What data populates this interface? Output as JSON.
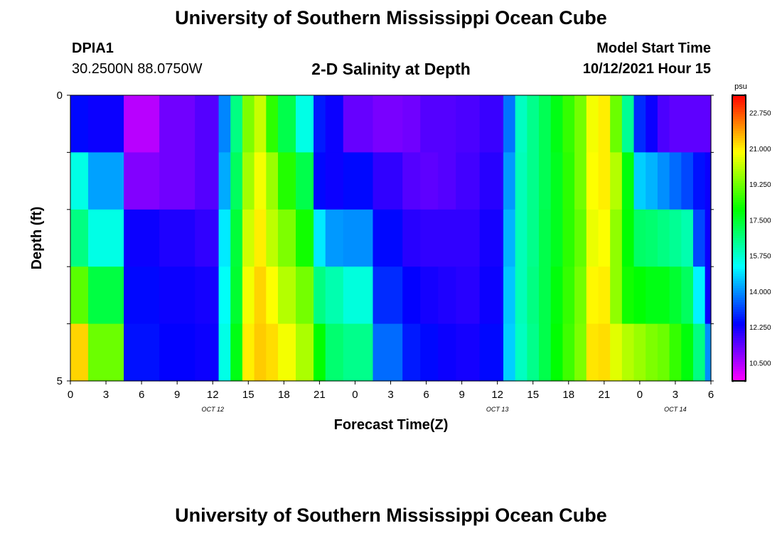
{
  "header": {
    "title": "University of Southern Mississippi Ocean Cube",
    "station_id": "DPIA1",
    "coordinates": "30.2500N  88.0750W",
    "subtitle": "2-D Salinity at Depth",
    "model_start_label": "Model Start Time",
    "model_start_value": "10/12/2021 Hour 15"
  },
  "footer": {
    "title": "University of Southern Mississippi Ocean Cube"
  },
  "chart_data": {
    "type": "heatmap",
    "title": "2-D Salinity at Depth",
    "xlabel": "Forecast Time(Z)",
    "ylabel": "Depth (ft)",
    "x_tick_labels": [
      "0",
      "3",
      "6",
      "9",
      "12",
      "15",
      "18",
      "21",
      "0",
      "3",
      "6",
      "9",
      "12",
      "15",
      "18",
      "21",
      "0",
      "3",
      "6"
    ],
    "date_labels": [
      "OCT 12",
      "OCT 13",
      "OCT 14"
    ],
    "y_tick_labels": [
      "0",
      "5"
    ],
    "ylim": [
      0,
      5
    ],
    "colorbar": {
      "unit": "psu",
      "min": 9.625,
      "max": 23.625,
      "ticks": [
        "10.500",
        "12.250",
        "14.000",
        "15.750",
        "17.500",
        "19.250",
        "21.000",
        "22.750"
      ]
    },
    "depth_layers": 5,
    "hours": [
      0,
      3,
      6,
      9,
      12,
      13,
      14,
      15,
      16,
      17,
      18,
      20,
      21,
      22,
      24,
      27,
      29,
      30,
      32,
      33,
      36,
      37,
      38,
      39,
      40,
      41,
      42,
      43,
      44,
      45,
      46,
      47,
      48,
      49,
      50,
      51,
      52,
      53,
      54
    ],
    "rows": [
      [
        12.5,
        12.3,
        10.4,
        11.2,
        11.5,
        13.9,
        16.6,
        19.4,
        20.2,
        18.5,
        17.2,
        15.5,
        12.7,
        12.3,
        11.3,
        11.1,
        11.2,
        11.5,
        11.5,
        11.6,
        11.8,
        13.7,
        15.9,
        16.5,
        17.1,
        17.8,
        18.6,
        19.3,
        20.7,
        21.0,
        19.2,
        16.4,
        12.9,
        12.3,
        11.6,
        11.4,
        11.4,
        11.4,
        11.4
      ],
      [
        15.5,
        14.2,
        11.0,
        11.2,
        11.5,
        14.3,
        17.0,
        19.8,
        20.7,
        19.7,
        18.4,
        17.2,
        12.5,
        12.3,
        12.5,
        11.9,
        11.5,
        11.4,
        11.5,
        11.7,
        12.0,
        14.1,
        16.0,
        16.5,
        17.1,
        17.7,
        18.5,
        19.3,
        20.8,
        21.0,
        20.0,
        17.9,
        14.7,
        14.4,
        14.0,
        13.6,
        13.2,
        12.6,
        12.3
      ],
      [
        16.6,
        15.5,
        12.3,
        12.1,
        11.9,
        15.0,
        17.4,
        20.3,
        21.0,
        20.1,
        19.4,
        18.2,
        15.0,
        14.1,
        14.0,
        12.5,
        12.0,
        11.9,
        11.9,
        11.9,
        12.2,
        14.4,
        16.0,
        16.5,
        17.2,
        17.7,
        18.5,
        19.1,
        20.6,
        20.8,
        19.6,
        18.0,
        16.9,
        16.8,
        16.6,
        16.4,
        16.1,
        13.2,
        12.3
      ],
      [
        19.0,
        17.3,
        12.5,
        12.3,
        12.2,
        15.3,
        17.5,
        20.7,
        21.3,
        20.8,
        20.0,
        19.3,
        16.6,
        16.1,
        15.6,
        12.9,
        12.4,
        12.2,
        12.1,
        12.0,
        12.3,
        14.6,
        16.0,
        16.6,
        17.2,
        17.9,
        18.6,
        19.3,
        20.9,
        21.0,
        19.6,
        18.2,
        18.0,
        17.8,
        17.8,
        17.5,
        17.0,
        15.1,
        12.3
      ],
      [
        21.3,
        19.2,
        12.6,
        12.4,
        12.3,
        15.5,
        17.8,
        21.0,
        21.4,
        21.2,
        20.7,
        19.9,
        18.0,
        16.8,
        16.5,
        13.6,
        12.7,
        12.5,
        12.3,
        12.2,
        12.5,
        14.7,
        15.9,
        16.5,
        17.2,
        18.0,
        18.7,
        19.4,
        21.1,
        21.2,
        20.5,
        20.0,
        19.7,
        19.4,
        19.2,
        18.6,
        17.9,
        16.6,
        14.0
      ]
    ]
  }
}
